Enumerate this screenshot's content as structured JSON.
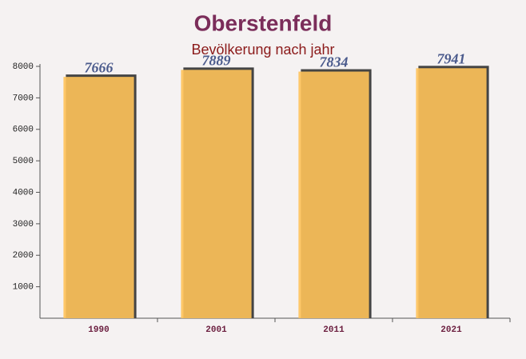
{
  "chart_data": {
    "type": "bar",
    "title": "Oberstenfeld",
    "subtitle": "Bevölkerung nach jahr",
    "categories": [
      "1990",
      "2001",
      "2011",
      "2021"
    ],
    "values": [
      7666,
      7889,
      7834,
      7941
    ],
    "color": "#ffc35a",
    "ylim": [
      0,
      8000
    ],
    "yticks": [
      1000,
      2000,
      3000,
      4000,
      5000,
      6000,
      7000,
      8000
    ]
  }
}
